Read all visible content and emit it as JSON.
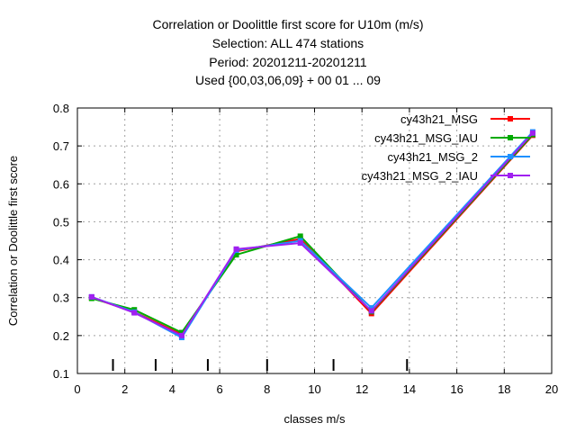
{
  "chart_data": {
    "type": "line",
    "title_lines": [
      "Correlation or Doolittle first score  for U10m (m/s)",
      "Selection: ALL    474 stations",
      "Period: 20201211-20201211",
      "Used {00,03,06,09} + 00 01 ... 09"
    ],
    "xlabel": "classes m/s",
    "ylabel": "Correlation or Doolittle first score",
    "xlim": [
      0,
      20
    ],
    "ylim": [
      0.1,
      0.8
    ],
    "x_ticks": [
      0,
      2,
      4,
      6,
      8,
      10,
      12,
      14,
      16,
      18,
      20
    ],
    "y_ticks": [
      0.1,
      0.2,
      0.3,
      0.4,
      0.5,
      0.6,
      0.7,
      0.8
    ],
    "grid": true,
    "legend_position": "top-right",
    "class_boundaries": [
      1.5,
      3.3,
      5.5,
      8.0,
      10.8,
      13.9
    ],
    "series": [
      {
        "name": "cy43h21_MSG",
        "color": "#ff0000",
        "x": [
          0.6,
          2.4,
          4.4,
          6.7,
          9.4,
          12.4,
          19.2
        ],
        "y": [
          0.3,
          0.262,
          0.203,
          0.422,
          0.455,
          0.258,
          0.728
        ]
      },
      {
        "name": "cy43h21_MSG_IAU",
        "color": "#00aa00",
        "x": [
          0.6,
          2.4,
          4.4,
          6.7,
          9.4,
          12.4,
          19.2
        ],
        "y": [
          0.298,
          0.268,
          0.208,
          0.413,
          0.462,
          0.263,
          0.73
        ]
      },
      {
        "name": "cy43h21_MSG_2",
        "color": "#1e90ff",
        "x": [
          0.6,
          2.4,
          4.4,
          6.7,
          9.4,
          12.4,
          19.2
        ],
        "y": [
          0.302,
          0.262,
          0.195,
          0.425,
          0.45,
          0.273,
          0.737
        ]
      },
      {
        "name": "cy43h21_MSG_2_IAU",
        "color": "#a020f0",
        "x": [
          0.6,
          2.4,
          4.4,
          6.7,
          9.4,
          12.4,
          19.2
        ],
        "y": [
          0.302,
          0.26,
          0.2,
          0.428,
          0.444,
          0.265,
          0.734
        ]
      }
    ]
  }
}
